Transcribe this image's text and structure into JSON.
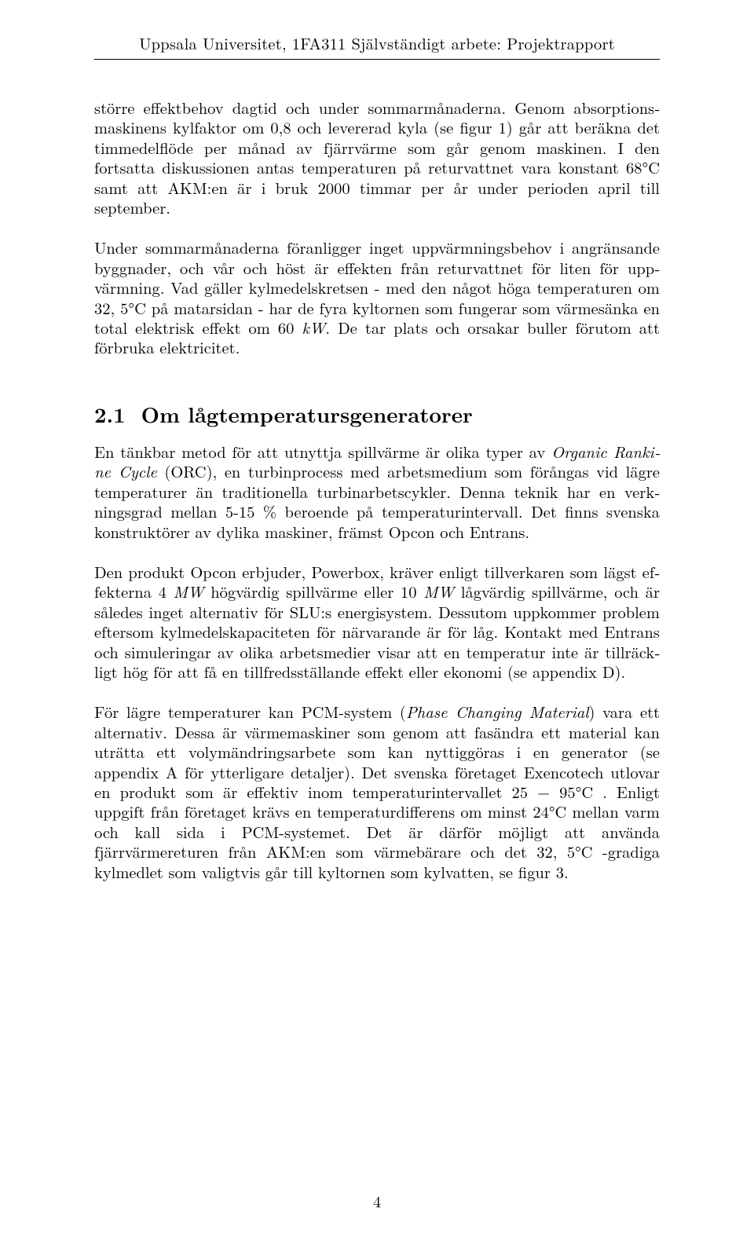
{
  "header": "Uppsala Universitet, 1FA311 Självständigt arbete: Projektrapport",
  "para1": "större effektbehov dagtid och under sommarmånaderna. Genom absorptions­maskinens kylfaktor om 0,8 och levererad kyla (se figur 1) går att beräkna det timmedelflöde per månad av fjärrvärme som går genom maskinen. I den fortsat­ta diskussionen antas temperaturen på returvattnet vara konstant 68°C samt att AKM:en är i bruk 2000 timmar per år under perioden april till september.",
  "para2_pre": "Under sommarmånaderna föranligger inget uppvärmningsbehov i angränsande byggnader, och vår och höst är effekten från returvattnet för liten för upp­värmning. Vad gäller kylmedelskretsen - med den något höga temperaturen om 32, 5°C på matarsidan - har de fyra kyltornen som fungerar som värmesänka en total elektrisk effekt om 60 ",
  "para2_kw": "kW",
  "para2_post": ". De tar plats och orsakar buller förutom att förbruka elektricitet.",
  "section_num": "2.1",
  "section_title": "Om lågtemperatursgeneratorer",
  "para3_pre": "En tänkbar metod för att utnyttja spillvärme är olika typer av ",
  "para3_em": "Organic Ranki­ne Cycle",
  "para3_post": " (ORC), en turbinprocess med arbetsmedium som förångas vid lägre temperaturer än traditionella turbinarbetscykler. Denna teknik har en verk­ningsgrad mellan 5-15 % beroende på temperaturintervall. Det finns svenska konstruktörer av dylika maskiner, främst Opcon och Entrans.",
  "para4_pre": "Den produkt Opcon erbjuder, Powerbox, kräver enligt tillverkaren som lägst ef­fekterna 4 ",
  "para4_mw1": "MW",
  "para4_mid": " högvärdig spillvärme eller 10 ",
  "para4_mw2": "MW",
  "para4_post": " lågvärdig spillvärme, och är således inget alternativ för SLU:s energisystem. Dessutom uppkommer problem eftersom kylmedelskapaciteten för närvarande är för låg. Kontakt med Entrans och simuleringar av olika arbetsmedier visar att en temperatur inte är tillräck­ligt hög för att få en tillfredsställande effekt eller ekonomi (se appendix D).",
  "para5_pre": "För lägre temperaturer kan PCM-system (",
  "para5_em": "Phase Changing Material",
  "para5_post": ") vara ett alternativ. Dessa är värmemaskiner som genom att fasändra ett material kan ut­rätta ett volymändringsarbete som kan nyttiggöras i en generator (se appendix A för ytterligare detaljer). Det svenska företaget Exencotech utlovar en pro­dukt som är effektiv inom temperaturintervallet 25 − 95°C . Enligt uppgift från företaget krävs en temperaturdifferens om minst 24°C mellan varm och kall si­da i PCM-systemet. Det är därför möjligt att använda fjärrvärmereturen från AKM:en som värmebärare och det 32, 5°C -gradiga kylmedlet som valigtvis går till kyltornen som kylvatten, se figur 3.",
  "page_number": "4"
}
